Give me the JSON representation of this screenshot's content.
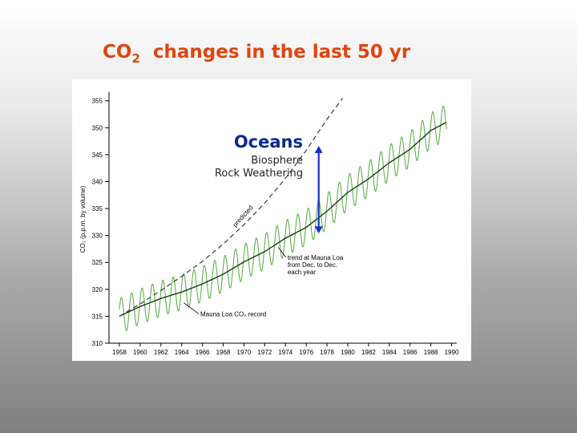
{
  "slide": {
    "title_prefix": "CO",
    "title_sub": "2",
    "title_rest": "changes in the last 50 yr"
  },
  "overlay": {
    "oceans": "Oceans",
    "biosphere": "Biosphere",
    "rock_weathering": "Rock Weathering",
    "arrow_color": "#1a2fc8",
    "arrow_from_ppm": 330.5,
    "arrow_to_ppm": 346.5,
    "arrow_year": 1977.2
  },
  "chart_data": {
    "type": "line",
    "title": "",
    "ylabel": "CO₂ (p.p.m. by volume)",
    "xlim": [
      1957,
      1990.5
    ],
    "ylim": [
      310,
      356
    ],
    "xticks": [
      1958,
      1960,
      1962,
      1964,
      1966,
      1968,
      1970,
      1972,
      1974,
      1976,
      1978,
      1980,
      1982,
      1984,
      1986,
      1988,
      1990
    ],
    "yticks": [
      310,
      315,
      320,
      325,
      330,
      335,
      340,
      345,
      350,
      355
    ],
    "grid": false,
    "series": [
      {
        "name": "Mauna Loa CO₂ record",
        "style": "seasonal",
        "color": "#5fb04b",
        "amplitude_ppm": 3.3,
        "x": [
          1958,
          1960,
          1962,
          1964,
          1966,
          1968,
          1970,
          1972,
          1974,
          1976,
          1978,
          1980,
          1982,
          1984,
          1986,
          1988,
          1989.5
        ],
        "values": [
          315.0,
          316.8,
          318.3,
          319.5,
          321.0,
          322.8,
          325.1,
          327.0,
          329.5,
          331.5,
          334.5,
          338.0,
          340.5,
          343.5,
          346.0,
          349.5,
          351.0
        ]
      },
      {
        "name": "trend at Mauna Loa from Dec. to Dec. each year",
        "style": "trend",
        "color": "#1d3b1a",
        "x": [
          1958,
          1960,
          1962,
          1964,
          1966,
          1968,
          1970,
          1972,
          1974,
          1976,
          1978,
          1980,
          1982,
          1984,
          1986,
          1988,
          1989.5
        ],
        "values": [
          315.0,
          316.8,
          318.3,
          319.5,
          321.0,
          322.8,
          325.1,
          327.0,
          329.5,
          331.5,
          334.5,
          338.0,
          340.5,
          343.5,
          346.0,
          349.5,
          351.0
        ]
      },
      {
        "name": "predicted",
        "style": "dashed",
        "color": "#444444",
        "x": [
          1958,
          1960,
          1962,
          1964,
          1966,
          1968,
          1970,
          1972,
          1974,
          1976,
          1978,
          1979.5
        ],
        "values": [
          315.0,
          317.3,
          319.8,
          322.4,
          325.2,
          328.4,
          332.0,
          336.0,
          340.6,
          345.8,
          351.6,
          355.5
        ]
      }
    ],
    "annotations": [
      {
        "text": "predicted",
        "x": 1969.2,
        "y": 331.5,
        "rotate": -48
      },
      {
        "lines": [
          "trend at Mauna Loa",
          "from Dec. to Dec.",
          "each year"
        ],
        "x": 1974.2,
        "y": 325.5,
        "pointer_to": [
          1973.3,
          327.8
        ]
      },
      {
        "lines": [
          "Mauna Loa CO₂ record"
        ],
        "x": 1965.8,
        "y": 315.0,
        "pointer_to": [
          1964.2,
          317.5
        ]
      }
    ]
  }
}
